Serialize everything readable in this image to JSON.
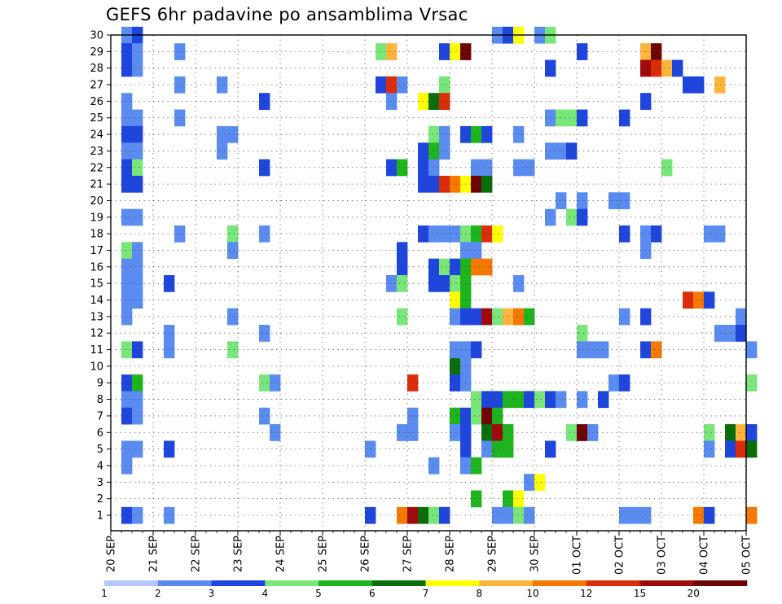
{
  "chart_data": {
    "type": "heatmap",
    "title": "GEFS 6hr padavine po ansamblima Vrsac",
    "x_ticks": [
      "20 SEP",
      "21 SEP",
      "22 SEP",
      "23 SEP",
      "24 SEP",
      "25 SEP",
      "26 SEP",
      "27 SEP",
      "28 SEP",
      "29 SEP",
      "30 SEP",
      "01 OCT",
      "02 OCT",
      "03 OCT",
      "04 OCT",
      "05 OCT"
    ],
    "y_ticks": [
      "1",
      "2",
      "3",
      "4",
      "5",
      "6",
      "7",
      "8",
      "9",
      "10",
      "11",
      "12",
      "13",
      "14",
      "15",
      "16",
      "17",
      "18",
      "19",
      "20",
      "21",
      "22",
      "23",
      "24",
      "25",
      "26",
      "27",
      "28",
      "29",
      "30"
    ],
    "x_range": {
      "start": "20 SEP 00Z",
      "end": "05 OCT 00Z",
      "step_hours": 6
    },
    "y_range": [
      1,
      30
    ],
    "grid": true,
    "legend_placement": "bottom",
    "legend": {
      "labels": [
        "1",
        "2",
        "3",
        "4",
        "5",
        "6",
        "7",
        "8",
        "10",
        "12",
        "15",
        "20"
      ],
      "colors": [
        "#b4c8ff",
        "#5a8cf0",
        "#1e46dc",
        "#78e678",
        "#1eb41e",
        "#0a6e0a",
        "#ffff00",
        "#ffb43c",
        "#f57800",
        "#dc2d0a",
        "#a00a0a",
        "#6e0505"
      ]
    },
    "levels": [
      0,
      1,
      2,
      3,
      4,
      5,
      6,
      7,
      8,
      10,
      12,
      15,
      20
    ],
    "cells_note": "each cell = [date-time (6h interval start), member, precipitation mm]",
    "cells": [
      [
        "20 SEP 06Z",
        30,
        1.5
      ],
      [
        "20 SEP 12Z",
        30,
        2.5
      ],
      [
        "20 SEP 06Z",
        29,
        2.5
      ],
      [
        "20 SEP 12Z",
        29,
        1.5
      ],
      [
        "21 SEP 12Z",
        29,
        1.5
      ],
      [
        "20 SEP 06Z",
        28,
        2.5
      ],
      [
        "20 SEP 12Z",
        28,
        1.5
      ],
      [
        "21 SEP 12Z",
        27,
        1.5
      ],
      [
        "22 SEP 12Z",
        27,
        1.5
      ],
      [
        "20 SEP 06Z",
        26,
        1.5
      ],
      [
        "23 SEP 12Z",
        26,
        2.5
      ],
      [
        "20 SEP 06Z",
        25,
        1.5
      ],
      [
        "20 SEP 12Z",
        25,
        1.5
      ],
      [
        "21 SEP 12Z",
        25,
        1.5
      ],
      [
        "20 SEP 06Z",
        24,
        2.5
      ],
      [
        "20 SEP 12Z",
        24,
        2.5
      ],
      [
        "22 SEP 12Z",
        24,
        1.5
      ],
      [
        "22 SEP 18Z",
        24,
        1.5
      ],
      [
        "20 SEP 06Z",
        23,
        1.5
      ],
      [
        "20 SEP 12Z",
        23,
        1.5
      ],
      [
        "22 SEP 12Z",
        23,
        1.5
      ],
      [
        "20 SEP 06Z",
        22,
        2.5
      ],
      [
        "20 SEP 12Z",
        22,
        3.5
      ],
      [
        "23 SEP 12Z",
        22,
        2.5
      ],
      [
        "20 SEP 06Z",
        21,
        2.5
      ],
      [
        "20 SEP 12Z",
        21,
        2.5
      ],
      [
        "20 SEP 06Z",
        19,
        1.5
      ],
      [
        "20 SEP 12Z",
        19,
        1.5
      ],
      [
        "21 SEP 12Z",
        18,
        1.5
      ],
      [
        "22 SEP 18Z",
        18,
        3.5
      ],
      [
        "23 SEP 12Z",
        18,
        1.5
      ],
      [
        "20 SEP 06Z",
        17,
        3.5
      ],
      [
        "20 SEP 12Z",
        17,
        1.5
      ],
      [
        "22 SEP 18Z",
        17,
        1.5
      ],
      [
        "20 SEP 06Z",
        16,
        1.5
      ],
      [
        "20 SEP 12Z",
        16,
        1.5
      ],
      [
        "20 SEP 06Z",
        15,
        1.5
      ],
      [
        "20 SEP 12Z",
        15,
        1.5
      ],
      [
        "21 SEP 06Z",
        15,
        2.5
      ],
      [
        "20 SEP 06Z",
        14,
        1.5
      ],
      [
        "20 SEP 12Z",
        14,
        1.5
      ],
      [
        "20 SEP 06Z",
        13,
        1.5
      ],
      [
        "22 SEP 18Z",
        13,
        1.5
      ],
      [
        "21 SEP 06Z",
        12,
        1.5
      ],
      [
        "23 SEP 12Z",
        12,
        1.5
      ],
      [
        "20 SEP 06Z",
        11,
        3.5
      ],
      [
        "20 SEP 12Z",
        11,
        2.5
      ],
      [
        "21 SEP 06Z",
        11,
        1.5
      ],
      [
        "22 SEP 18Z",
        11,
        3.5
      ],
      [
        "20 SEP 06Z",
        9,
        2.5
      ],
      [
        "20 SEP 12Z",
        9,
        4.5
      ],
      [
        "23 SEP 12Z",
        9,
        3.5
      ],
      [
        "23 SEP 18Z",
        9,
        1.5
      ],
      [
        "20 SEP 06Z",
        8,
        1.5
      ],
      [
        "20 SEP 12Z",
        8,
        1.5
      ],
      [
        "20 SEP 06Z",
        7,
        2.5
      ],
      [
        "20 SEP 12Z",
        7,
        1.5
      ],
      [
        "23 SEP 12Z",
        7,
        1.5
      ],
      [
        "23 SEP 18Z",
        6,
        1.5
      ],
      [
        "20 SEP 06Z",
        5,
        1.5
      ],
      [
        "20 SEP 12Z",
        5,
        1.5
      ],
      [
        "21 SEP 06Z",
        5,
        2.5
      ],
      [
        "20 SEP 06Z",
        4,
        1.5
      ],
      [
        "20 SEP 06Z",
        1,
        2.5
      ],
      [
        "20 SEP 12Z",
        1,
        1.5
      ],
      [
        "21 SEP 06Z",
        1,
        1.5
      ],
      [
        "26 SEP 06Z",
        29,
        3.5
      ],
      [
        "26 SEP 12Z",
        29,
        7.5
      ],
      [
        "27 SEP 18Z",
        29,
        2.5
      ],
      [
        "28 SEP 00Z",
        29,
        6.5
      ],
      [
        "28 SEP 06Z",
        29,
        17.5
      ],
      [
        "26 SEP 06Z",
        27,
        2.5
      ],
      [
        "26 SEP 12Z",
        27,
        11
      ],
      [
        "26 SEP 18Z",
        27,
        1.5
      ],
      [
        "27 SEP 18Z",
        27,
        3.5
      ],
      [
        "26 SEP 12Z",
        26,
        1.5
      ],
      [
        "27 SEP 06Z",
        26,
        6.5
      ],
      [
        "27 SEP 12Z",
        26,
        5.5
      ],
      [
        "27 SEP 18Z",
        26,
        11
      ],
      [
        "27 SEP 12Z",
        24,
        3.5
      ],
      [
        "27 SEP 18Z",
        24,
        1.5
      ],
      [
        "28 SEP 06Z",
        24,
        2.5
      ],
      [
        "28 SEP 12Z",
        24,
        4.5
      ],
      [
        "28 SEP 18Z",
        24,
        2.5
      ],
      [
        "29 SEP 12Z",
        24,
        1.5
      ],
      [
        "27 SEP 06Z",
        23,
        2.5
      ],
      [
        "27 SEP 12Z",
        23,
        4.5
      ],
      [
        "27 SEP 18Z",
        23,
        1.5
      ],
      [
        "26 SEP 12Z",
        22,
        2.5
      ],
      [
        "26 SEP 18Z",
        22,
        4.5
      ],
      [
        "27 SEP 06Z",
        22,
        2.5
      ],
      [
        "27 SEP 12Z",
        22,
        1.5
      ],
      [
        "28 SEP 12Z",
        22,
        1.5
      ],
      [
        "28 SEP 18Z",
        22,
        1.5
      ],
      [
        "29 SEP 12Z",
        22,
        1.5
      ],
      [
        "29 SEP 18Z",
        22,
        1.5
      ],
      [
        "27 SEP 06Z",
        21,
        2.5
      ],
      [
        "27 SEP 12Z",
        21,
        2.5
      ],
      [
        "27 SEP 18Z",
        21,
        11
      ],
      [
        "28 SEP 00Z",
        21,
        8.5
      ],
      [
        "28 SEP 06Z",
        21,
        6.5
      ],
      [
        "28 SEP 12Z",
        21,
        17.5
      ],
      [
        "28 SEP 18Z",
        21,
        5.5
      ],
      [
        "27 SEP 06Z",
        18,
        2.5
      ],
      [
        "27 SEP 12Z",
        18,
        1.5
      ],
      [
        "27 SEP 18Z",
        18,
        1.5
      ],
      [
        "28 SEP 00Z",
        18,
        1.5
      ],
      [
        "28 SEP 06Z",
        18,
        3.5
      ],
      [
        "28 SEP 12Z",
        18,
        4.5
      ],
      [
        "28 SEP 18Z",
        18,
        11
      ],
      [
        "29 SEP 00Z",
        18,
        6.5
      ],
      [
        "26 SEP 18Z",
        17,
        2.5
      ],
      [
        "28 SEP 06Z",
        17,
        1.5
      ],
      [
        "28 SEP 12Z",
        17,
        1.5
      ],
      [
        "26 SEP 18Z",
        16,
        2.5
      ],
      [
        "27 SEP 12Z",
        16,
        2.5
      ],
      [
        "27 SEP 18Z",
        16,
        3.5
      ],
      [
        "28 SEP 00Z",
        16,
        2.5
      ],
      [
        "28 SEP 06Z",
        16,
        4.5
      ],
      [
        "28 SEP 12Z",
        16,
        8.5
      ],
      [
        "28 SEP 18Z",
        16,
        8.5
      ],
      [
        "26 SEP 12Z",
        15,
        1.5
      ],
      [
        "26 SEP 18Z",
        15,
        3.5
      ],
      [
        "27 SEP 12Z",
        15,
        2.5
      ],
      [
        "27 SEP 18Z",
        15,
        2.5
      ],
      [
        "28 SEP 00Z",
        15,
        3.5
      ],
      [
        "28 SEP 06Z",
        15,
        4.5
      ],
      [
        "29 SEP 12Z",
        15,
        1.5
      ],
      [
        "28 SEP 00Z",
        14,
        6.5
      ],
      [
        "28 SEP 06Z",
        14,
        4.5
      ],
      [
        "26 SEP 18Z",
        13,
        3.5
      ],
      [
        "28 SEP 00Z",
        13,
        1.5
      ],
      [
        "28 SEP 06Z",
        13,
        2.5
      ],
      [
        "28 SEP 12Z",
        13,
        2.5
      ],
      [
        "28 SEP 18Z",
        13,
        13
      ],
      [
        "29 SEP 00Z",
        13,
        3.5
      ],
      [
        "29 SEP 06Z",
        13,
        7.5
      ],
      [
        "29 SEP 12Z",
        13,
        8.5
      ],
      [
        "29 SEP 18Z",
        13,
        4.5
      ],
      [
        "28 SEP 00Z",
        10,
        5.5
      ],
      [
        "28 SEP 06Z",
        10,
        1.5
      ],
      [
        "28 SEP 00Z",
        11,
        1.5
      ],
      [
        "28 SEP 06Z",
        11,
        1.5
      ],
      [
        "28 SEP 12Z",
        11,
        2.5
      ],
      [
        "27 SEP 00Z",
        9,
        11
      ],
      [
        "28 SEP 00Z",
        9,
        2.5
      ],
      [
        "28 SEP 06Z",
        9,
        1.5
      ],
      [
        "28 SEP 12Z",
        8,
        3.5
      ],
      [
        "28 SEP 18Z",
        8,
        2.5
      ],
      [
        "29 SEP 00Z",
        8,
        2.5
      ],
      [
        "29 SEP 06Z",
        8,
        4.5
      ],
      [
        "29 SEP 12Z",
        8,
        4.5
      ],
      [
        "29 SEP 18Z",
        8,
        2.5
      ],
      [
        "27 SEP 00Z",
        7,
        1.5
      ],
      [
        "28 SEP 00Z",
        7,
        4.5
      ],
      [
        "28 SEP 06Z",
        7,
        2.5
      ],
      [
        "28 SEP 12Z",
        7,
        3.5
      ],
      [
        "28 SEP 18Z",
        7,
        17.5
      ],
      [
        "29 SEP 00Z",
        7,
        4.5
      ],
      [
        "26 SEP 18Z",
        6,
        1.5
      ],
      [
        "27 SEP 00Z",
        6,
        1.5
      ],
      [
        "28 SEP 00Z",
        6,
        1.5
      ],
      [
        "28 SEP 06Z",
        6,
        2.5
      ],
      [
        "28 SEP 18Z",
        6,
        5.5
      ],
      [
        "29 SEP 00Z",
        6,
        13
      ],
      [
        "29 SEP 06Z",
        6,
        4.5
      ],
      [
        "26 SEP 00Z",
        5,
        1.5
      ],
      [
        "28 SEP 06Z",
        5,
        2.5
      ],
      [
        "28 SEP 18Z",
        5,
        1.5
      ],
      [
        "29 SEP 00Z",
        5,
        4.5
      ],
      [
        "29 SEP 06Z",
        5,
        4.5
      ],
      [
        "27 SEP 12Z",
        4,
        1.5
      ],
      [
        "28 SEP 06Z",
        4,
        1.5
      ],
      [
        "28 SEP 12Z",
        4,
        4.5
      ],
      [
        "28 SEP 12Z",
        2,
        4.5
      ],
      [
        "29 SEP 06Z",
        2,
        4.5
      ],
      [
        "29 SEP 12Z",
        2,
        6.5
      ],
      [
        "26 SEP 00Z",
        1,
        2.5
      ],
      [
        "26 SEP 18Z",
        1,
        8.5
      ],
      [
        "27 SEP 00Z",
        1,
        13
      ],
      [
        "27 SEP 06Z",
        1,
        5.5
      ],
      [
        "27 SEP 12Z",
        1,
        3.5
      ],
      [
        "27 SEP 18Z",
        1,
        2.5
      ],
      [
        "29 SEP 00Z",
        1,
        1.5
      ],
      [
        "29 SEP 06Z",
        1,
        1.5
      ],
      [
        "29 SEP 12Z",
        1,
        3.5
      ],
      [
        "29 SEP 18Z",
        1,
        1.5
      ],
      [
        "29 SEP 00Z",
        30,
        1.5
      ],
      [
        "29 SEP 06Z",
        30,
        2.5
      ],
      [
        "29 SEP 12Z",
        30,
        6.5
      ],
      [
        "30 SEP 00Z",
        30,
        1.5
      ],
      [
        "30 SEP 06Z",
        30,
        3.5
      ],
      [
        "29 SEP 18Z",
        3,
        1.5
      ],
      [
        "30 SEP 00Z",
        3,
        6.5
      ],
      [
        "30 SEP 00Z",
        8,
        3.5
      ],
      [
        "30 SEP 06Z",
        8,
        2.5
      ],
      [
        "30 SEP 12Z",
        8,
        1.5
      ],
      [
        "01 OCT 00Z",
        8,
        1.5
      ],
      [
        "01 OCT 12Z",
        8,
        2.5
      ],
      [
        "30 SEP 06Z",
        25,
        1.5
      ],
      [
        "30 SEP 12Z",
        25,
        3.5
      ],
      [
        "30 SEP 18Z",
        25,
        3.5
      ],
      [
        "01 OCT 00Z",
        25,
        2.5
      ],
      [
        "30 SEP 06Z",
        23,
        1.5
      ],
      [
        "30 SEP 12Z",
        23,
        1.5
      ],
      [
        "30 SEP 18Z",
        23,
        2.5
      ],
      [
        "30 SEP 06Z",
        28,
        2.5
      ],
      [
        "01 OCT 00Z",
        29,
        2.5
      ],
      [
        "30 SEP 12Z",
        20,
        1.5
      ],
      [
        "01 OCT 00Z",
        20,
        1.5
      ],
      [
        "01 OCT 18Z",
        20,
        1.5
      ],
      [
        "02 OCT 00Z",
        20,
        1.5
      ],
      [
        "30 SEP 06Z",
        19,
        1.5
      ],
      [
        "30 SEP 18Z",
        19,
        3.5
      ],
      [
        "01 OCT 00Z",
        19,
        2.5
      ],
      [
        "01 OCT 00Z",
        12,
        3.5
      ],
      [
        "01 OCT 00Z",
        11,
        1.5
      ],
      [
        "01 OCT 06Z",
        11,
        1.5
      ],
      [
        "01 OCT 12Z",
        11,
        1.5
      ],
      [
        "30 SEP 18Z",
        6,
        3.5
      ],
      [
        "01 OCT 00Z",
        6,
        17.5
      ],
      [
        "01 OCT 06Z",
        6,
        1.5
      ],
      [
        "30 SEP 06Z",
        5,
        2.5
      ],
      [
        "02 OCT 12Z",
        29,
        7.5
      ],
      [
        "02 OCT 18Z",
        29,
        17.5
      ],
      [
        "02 OCT 12Z",
        28,
        13
      ],
      [
        "02 OCT 18Z",
        28,
        11
      ],
      [
        "03 OCT 00Z",
        28,
        7.5
      ],
      [
        "03 OCT 06Z",
        28,
        2.5
      ],
      [
        "03 OCT 12Z",
        27,
        2.5
      ],
      [
        "03 OCT 18Z",
        27,
        2.5
      ],
      [
        "04 OCT 06Z",
        27,
        7.5
      ],
      [
        "02 OCT 12Z",
        26,
        2.5
      ],
      [
        "02 OCT 00Z",
        25,
        2.5
      ],
      [
        "02 OCT 00Z",
        18,
        2.5
      ],
      [
        "02 OCT 12Z",
        18,
        1.5
      ],
      [
        "02 OCT 18Z",
        18,
        2.5
      ],
      [
        "04 OCT 00Z",
        18,
        1.5
      ],
      [
        "04 OCT 06Z",
        18,
        1.5
      ],
      [
        "03 OCT 00Z",
        22,
        3.5
      ],
      [
        "02 OCT 12Z",
        17,
        1.5
      ],
      [
        "03 OCT 12Z",
        14,
        11
      ],
      [
        "03 OCT 18Z",
        14,
        8.5
      ],
      [
        "04 OCT 00Z",
        14,
        2.5
      ],
      [
        "02 OCT 00Z",
        13,
        1.5
      ],
      [
        "02 OCT 12Z",
        13,
        2.5
      ],
      [
        "04 OCT 18Z",
        13,
        1.5
      ],
      [
        "04 OCT 06Z",
        12,
        1.5
      ],
      [
        "04 OCT 12Z",
        12,
        1.5
      ],
      [
        "04 OCT 18Z",
        12,
        2.5
      ],
      [
        "02 OCT 12Z",
        11,
        2.5
      ],
      [
        "02 OCT 18Z",
        11,
        8.5
      ],
      [
        "05 OCT 00Z",
        11,
        1.5
      ],
      [
        "01 OCT 18Z",
        9,
        1.5
      ],
      [
        "02 OCT 00Z",
        9,
        2.5
      ],
      [
        "05 OCT 00Z",
        9,
        3.5
      ],
      [
        "04 OCT 00Z",
        6,
        3.5
      ],
      [
        "04 OCT 12Z",
        6,
        5.5
      ],
      [
        "04 OCT 18Z",
        6,
        7.5
      ],
      [
        "05 OCT 00Z",
        6,
        2.5
      ],
      [
        "04 OCT 00Z",
        5,
        1.5
      ],
      [
        "04 OCT 12Z",
        5,
        2.5
      ],
      [
        "04 OCT 18Z",
        5,
        11
      ],
      [
        "05 OCT 00Z",
        5,
        5.5
      ],
      [
        "02 OCT 00Z",
        1,
        1.5
      ],
      [
        "02 OCT 06Z",
        1,
        1.5
      ],
      [
        "02 OCT 12Z",
        1,
        1.5
      ],
      [
        "03 OCT 18Z",
        1,
        8.5
      ],
      [
        "04 OCT 00Z",
        1,
        2.5
      ],
      [
        "05 OCT 00Z",
        1,
        8.5
      ]
    ]
  }
}
